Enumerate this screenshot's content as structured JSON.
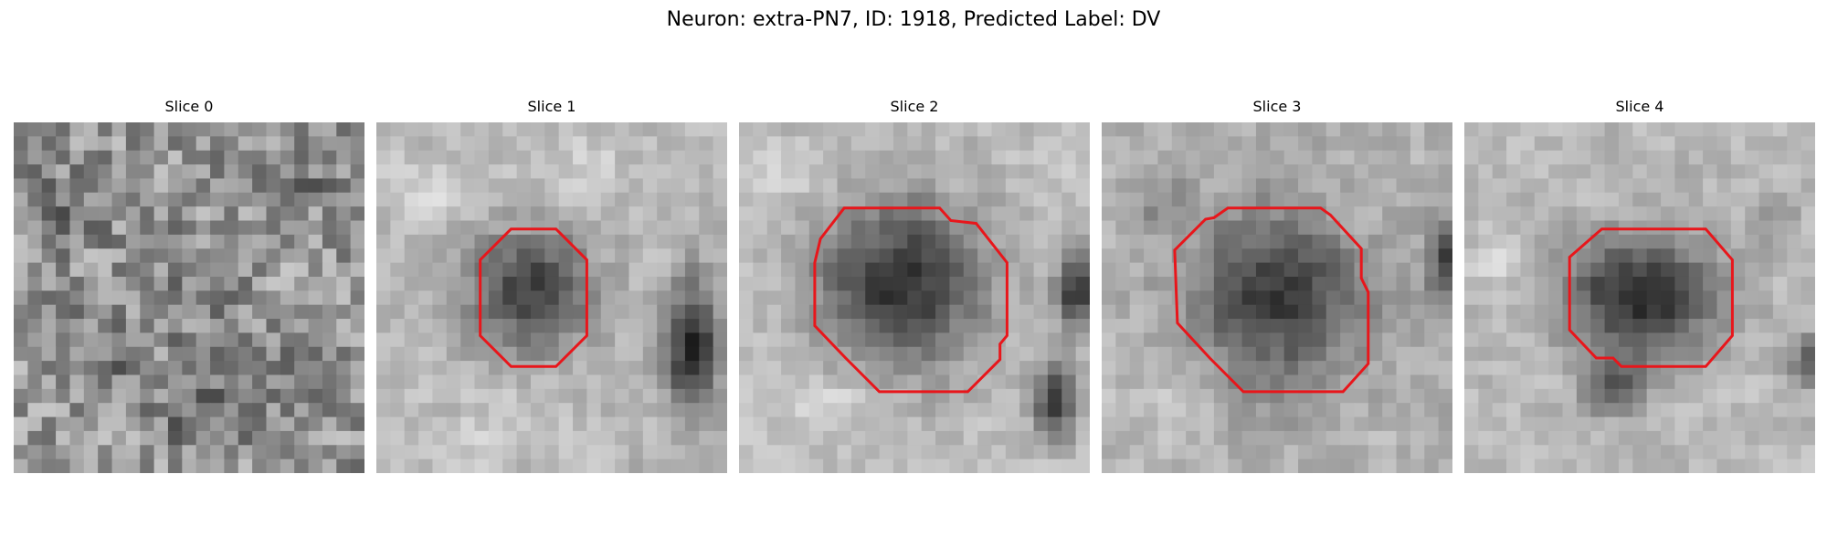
{
  "figure": {
    "title": "Neuron: extra-PN7, ID: 1918, Predicted Label: DV"
  },
  "colors": {
    "contour": "#e8161b",
    "background": "#ffffff"
  },
  "panels": [
    {
      "title": "Slice 0"
    },
    {
      "title": "Slice 1"
    },
    {
      "title": "Slice 2"
    },
    {
      "title": "Slice 3"
    },
    {
      "title": "Slice 4"
    }
  ]
}
